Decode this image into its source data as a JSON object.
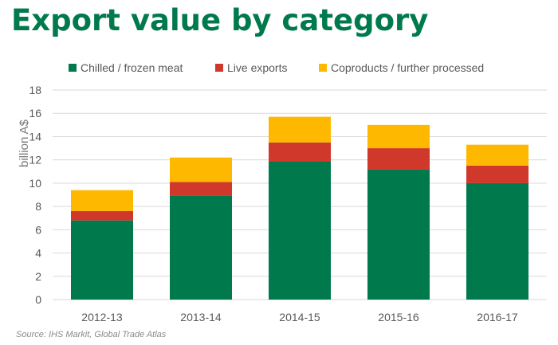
{
  "title": "Export value by category",
  "source": "Source: IHS Markit, Global Trade Atlas",
  "chart_data": {
    "type": "bar",
    "stacked": true,
    "categories": [
      "2012-13",
      "2013-14",
      "2014-15",
      "2015-16",
      "2016-17"
    ],
    "series": [
      {
        "name": "Chilled / frozen meat",
        "color": "#007a4d",
        "values": [
          6.8,
          8.9,
          11.9,
          11.2,
          10.0
        ]
      },
      {
        "name": "Live exports",
        "color": "#d0382b",
        "values": [
          0.8,
          1.2,
          1.6,
          1.8,
          1.5
        ]
      },
      {
        "name": "Coproducts / further processed",
        "color": "#ffb800",
        "values": [
          1.8,
          2.1,
          2.2,
          2.0,
          1.8
        ]
      }
    ],
    "xlabel": "",
    "ylabel": "billion A$",
    "ylim": [
      0,
      18
    ],
    "yticks": [
      0,
      2,
      4,
      6,
      8,
      10,
      12,
      14,
      16,
      18
    ],
    "grid": true,
    "legend_position": "top"
  }
}
